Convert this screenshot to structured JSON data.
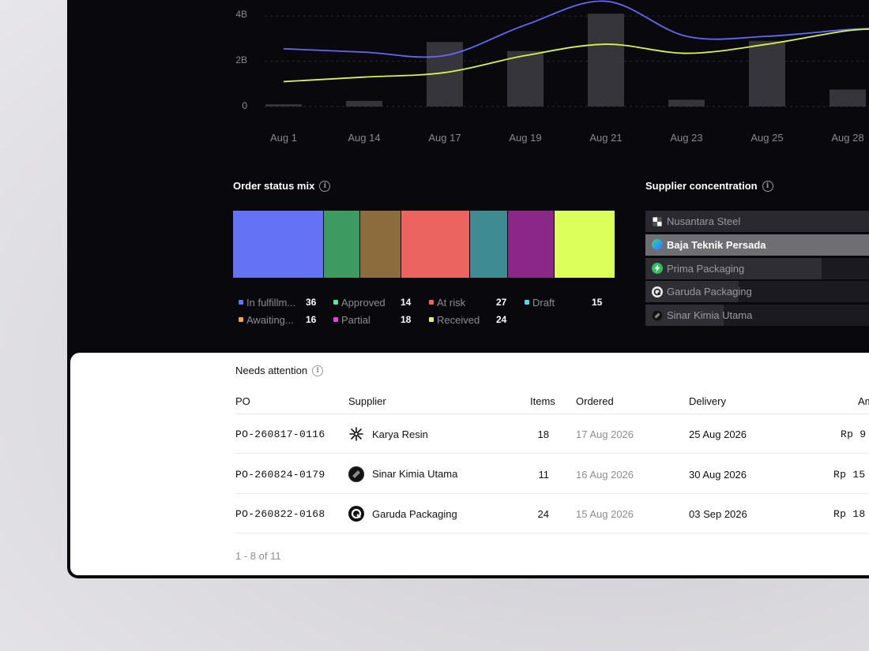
{
  "chart_data": {
    "type": "bar",
    "categories": [
      "Aug 1",
      "Aug 14",
      "Aug 17",
      "Aug 19",
      "Aug 21",
      "Aug 23",
      "Aug 25",
      "Aug 28"
    ],
    "series": [
      {
        "kind": "bar",
        "values": [
          0.1,
          0.25,
          2.85,
          2.45,
          4.1,
          0.3,
          2.9,
          0.75
        ]
      },
      {
        "kind": "line",
        "values": [
          2.55,
          2.4,
          2.25,
          3.6,
          4.65,
          3.1,
          3.1,
          3.4
        ]
      },
      {
        "kind": "line",
        "values": [
          1.1,
          1.3,
          1.5,
          2.25,
          2.75,
          2.35,
          2.75,
          3.35
        ]
      }
    ],
    "yticks": [
      "0",
      "2B",
      "4B"
    ],
    "ylim": [
      0,
      5
    ],
    "grid": true,
    "colors": {
      "bar": "#36353b",
      "line_purple": "#6467f2",
      "line_lime": "#d4f54a"
    }
  },
  "order_status": {
    "title": "Order status mix",
    "items": [
      {
        "label": "In fulfillm...",
        "count": "36",
        "value": 36,
        "color": "#6473f4",
        "dot": "#6473f4"
      },
      {
        "label": "Approved",
        "count": "14",
        "value": 14,
        "color": "#3d9b62",
        "dot": "#56e3a0"
      },
      {
        "label": "At risk",
        "count": "27",
        "value": 27,
        "color": "#ec645f",
        "dot": "#f0625e"
      },
      {
        "label": "Draft",
        "count": "15",
        "value": 15,
        "color": "#3e8c91",
        "dot": "#57d8e0"
      },
      {
        "label": "Awaiting...",
        "count": "16",
        "value": 16,
        "color": "#8c6b3c",
        "dot": "#f5a54a"
      },
      {
        "label": "Partial",
        "count": "18",
        "value": 18,
        "color": "#8a2787",
        "dot": "#e83ce4"
      },
      {
        "label": "Received",
        "count": "24",
        "value": 24,
        "color": "#dcff5a",
        "dot": "#d9ff57"
      }
    ],
    "bar_order": [
      0,
      1,
      4,
      2,
      3,
      5,
      6
    ]
  },
  "supplier_concentration": {
    "title": "Supplier concentration",
    "items": [
      {
        "name": "Nusantara Steel",
        "share": 1.0,
        "icon": "blocks-icon",
        "active": false
      },
      {
        "name": "Baja Teknik Persada",
        "share": 1.0,
        "icon": "gradient-circle-icon",
        "active": true
      },
      {
        "name": "Prima Packaging",
        "share": 0.72,
        "icon": "bolt-icon",
        "active": false
      },
      {
        "name": "Garuda Packaging",
        "share": 0.38,
        "icon": "q-icon",
        "active": false
      },
      {
        "name": "Sinar Kimia Utama",
        "share": 0.32,
        "icon": "sphere-icon",
        "active": false
      }
    ]
  },
  "needs_attention": {
    "title": "Needs attention",
    "columns": {
      "po": "PO",
      "supplier": "Supplier",
      "items": "Items",
      "ordered": "Ordered",
      "delivery": "Delivery",
      "amount": "Am"
    },
    "rows": [
      {
        "po": "PO-260817-0116",
        "supplier": "Karya Resin",
        "icon": "asterisk-icon",
        "items": "18",
        "ordered": "17 Aug 2026",
        "delivery": "25 Aug 2026",
        "amount": "Rp 9"
      },
      {
        "po": "PO-260824-0179",
        "supplier": "Sinar Kimia Utama",
        "icon": "sphere-icon",
        "items": "11",
        "ordered": "16 Aug 2026",
        "delivery": "30 Aug 2026",
        "amount": "Rp 15"
      },
      {
        "po": "PO-260822-0168",
        "supplier": "Garuda Packaging",
        "icon": "q-icon",
        "items": "24",
        "ordered": "15 Aug 2026",
        "delivery": "03 Sep 2026",
        "amount": "Rp 18"
      }
    ],
    "pagination": "1 - 8 of 11"
  }
}
